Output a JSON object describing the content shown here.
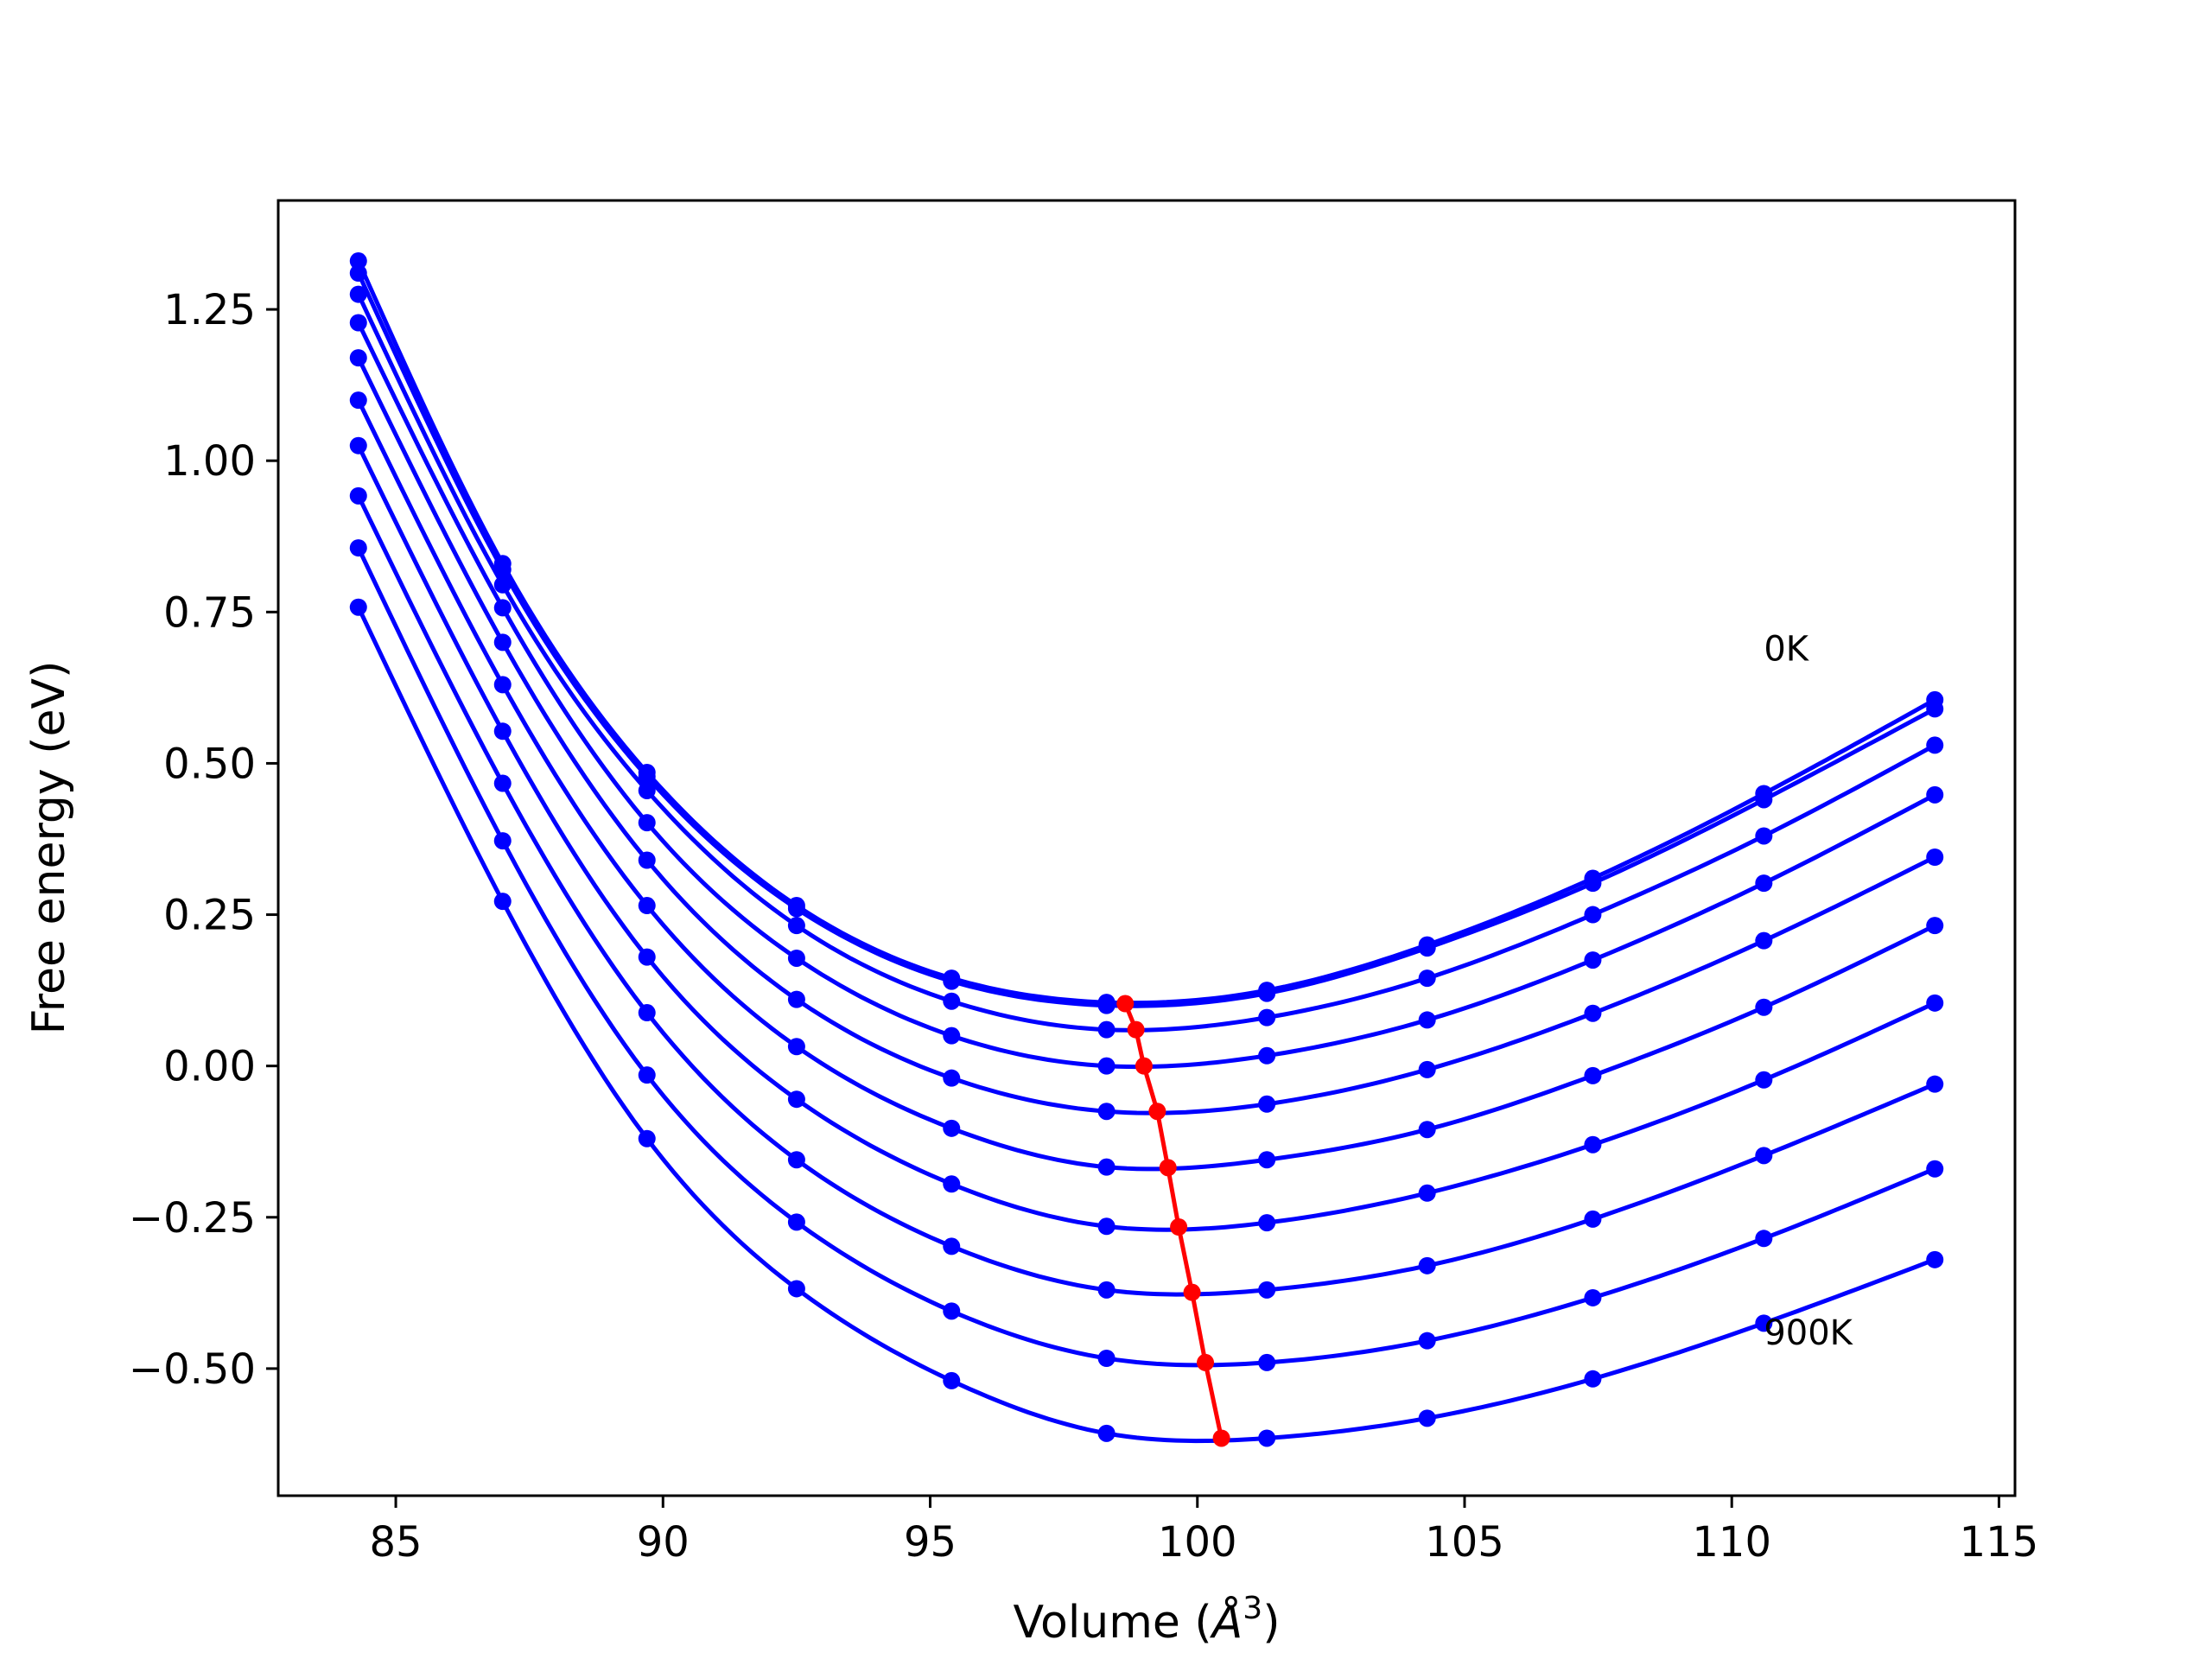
{
  "chart_data": {
    "type": "line",
    "title": "",
    "xlabel": "Volume (",
    "xlabel_unit_base": "Å",
    "xlabel_unit_exp": "3",
    "xlabel_close": ")",
    "ylabel": "Free energy (eV)",
    "xlim": [
      82.8,
      115.3
    ],
    "ylim": [
      -0.71,
      1.43
    ],
    "xticks": [
      85,
      90,
      95,
      100,
      105,
      110,
      115
    ],
    "xtick_labels": [
      "85",
      "90",
      "95",
      "100",
      "105",
      "110",
      "115"
    ],
    "yticks": [
      -0.5,
      -0.25,
      0.0,
      0.25,
      0.5,
      0.75,
      1.0,
      1.25
    ],
    "ytick_labels": [
      "−0.50",
      "−0.25",
      "0.00",
      "0.25",
      "0.50",
      "0.75",
      "1.00",
      "1.25"
    ],
    "grid": false,
    "annotations": [
      {
        "text": "0K",
        "x": 110.6,
        "y": 0.67
      },
      {
        "text": "900K",
        "x": 110.6,
        "y": -0.46
      }
    ],
    "x": [
      84.3,
      87.0,
      89.7,
      92.5,
      95.4,
      98.3,
      101.3,
      104.3,
      107.4,
      110.6,
      113.8
    ],
    "series": [
      {
        "values": [
          1.33,
          0.83,
          0.485,
          0.265,
          0.145,
          0.105,
          0.125,
          0.2,
          0.31,
          0.45,
          0.605
        ]
      },
      {
        "values": [
          1.31,
          0.82,
          0.478,
          0.26,
          0.14,
          0.1,
          0.12,
          0.195,
          0.302,
          0.44,
          0.59
        ]
      },
      {
        "values": [
          1.275,
          0.795,
          0.455,
          0.232,
          0.107,
          0.06,
          0.08,
          0.145,
          0.25,
          0.38,
          0.53
        ]
      },
      {
        "values": [
          1.228,
          0.757,
          0.402,
          0.178,
          0.05,
          0.0,
          0.017,
          0.076,
          0.175,
          0.302,
          0.448
        ]
      },
      {
        "values": [
          1.17,
          0.7,
          0.34,
          0.11,
          -0.02,
          -0.075,
          -0.063,
          -0.006,
          0.087,
          0.207,
          0.345
        ]
      },
      {
        "values": [
          1.1,
          0.63,
          0.265,
          0.032,
          -0.103,
          -0.167,
          -0.155,
          -0.105,
          -0.016,
          0.097,
          0.232
        ]
      },
      {
        "values": [
          1.025,
          0.553,
          0.18,
          -0.055,
          -0.195,
          -0.265,
          -0.259,
          -0.21,
          -0.13,
          -0.023,
          0.104
        ]
      },
      {
        "values": [
          0.942,
          0.467,
          0.088,
          -0.155,
          -0.298,
          -0.37,
          -0.37,
          -0.33,
          -0.253,
          -0.148,
          -0.03
        ]
      },
      {
        "values": [
          0.856,
          0.372,
          -0.015,
          -0.258,
          -0.405,
          -0.483,
          -0.49,
          -0.454,
          -0.383,
          -0.285,
          -0.17
        ]
      },
      {
        "values": [
          0.758,
          0.272,
          -0.12,
          -0.368,
          -0.52,
          -0.607,
          -0.615,
          -0.582,
          -0.517,
          -0.425,
          -0.32
        ]
      }
    ],
    "minimum_locus": {
      "x": [
        98.65,
        98.85,
        99.0,
        99.25,
        99.45,
        99.65,
        99.9,
        100.15,
        100.45
      ],
      "y": [
        0.103,
        0.06,
        -0.0,
        -0.075,
        -0.168,
        -0.266,
        -0.374,
        -0.49,
        -0.615
      ]
    },
    "colors": {
      "curves": "#0000ff",
      "locus": "#ff0000",
      "axes": "#000000"
    }
  }
}
